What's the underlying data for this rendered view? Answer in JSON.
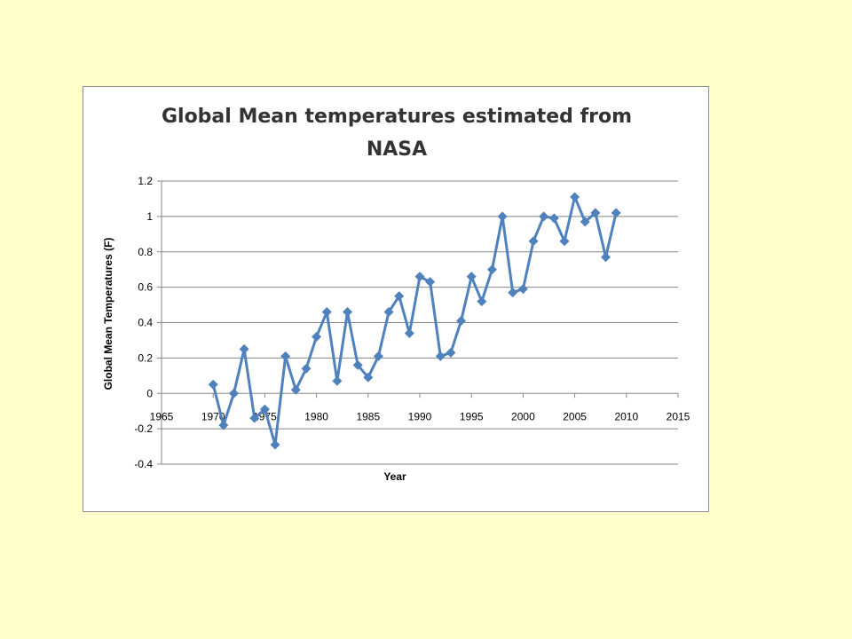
{
  "colors": {
    "background": "#FFFFCC",
    "chart_background": "#FFFFFF",
    "series": "#4F81BD",
    "gridline": "#858585",
    "axis": "#858585"
  },
  "chart_data": {
    "type": "scatter",
    "title_lines": [
      "Global Mean temperatures estimated from",
      "NASA"
    ],
    "xlabel": "Year",
    "ylabel": "Global Mean Temperatures (F)",
    "xlim": [
      1965,
      2015
    ],
    "ylim": [
      -0.4,
      1.2
    ],
    "x_ticks": [
      1965,
      1970,
      1975,
      1980,
      1985,
      1990,
      1995,
      2000,
      2005,
      2010,
      2015
    ],
    "y_ticks": [
      -0.4,
      -0.2,
      0,
      0.2,
      0.4,
      0.6,
      0.8,
      1,
      1.2
    ],
    "y_tick_labels": [
      "-0.4",
      "-0.2",
      "0",
      "0.2",
      "0.4",
      "0.6",
      "0.8",
      "1",
      "1.2"
    ],
    "grid": "horizontal",
    "legend": "none",
    "marker": "diamond",
    "lines_connecting_points": true,
    "series": [
      {
        "x": [
          1970,
          1971,
          1972,
          1973,
          1974,
          1975,
          1976,
          1977,
          1978,
          1979,
          1980,
          1981,
          1982,
          1983,
          1984,
          1985,
          1986,
          1987,
          1988,
          1989,
          1990,
          1991,
          1992,
          1993,
          1994,
          1995,
          1996,
          1997,
          1998,
          1999,
          2000,
          2001,
          2002,
          2003,
          2004,
          2005,
          2006,
          2007,
          2008,
          2009
        ],
        "y": [
          0.05,
          -0.18,
          0.0,
          0.25,
          -0.14,
          -0.09,
          -0.29,
          0.21,
          0.02,
          0.14,
          0.32,
          0.46,
          0.07,
          0.46,
          0.16,
          0.09,
          0.21,
          0.46,
          0.55,
          0.34,
          0.66,
          0.63,
          0.21,
          0.23,
          0.41,
          0.66,
          0.52,
          0.7,
          1.0,
          0.57,
          0.59,
          0.86,
          1.0,
          0.99,
          0.86,
          1.11,
          0.97,
          1.02,
          0.77,
          1.02
        ]
      }
    ]
  }
}
